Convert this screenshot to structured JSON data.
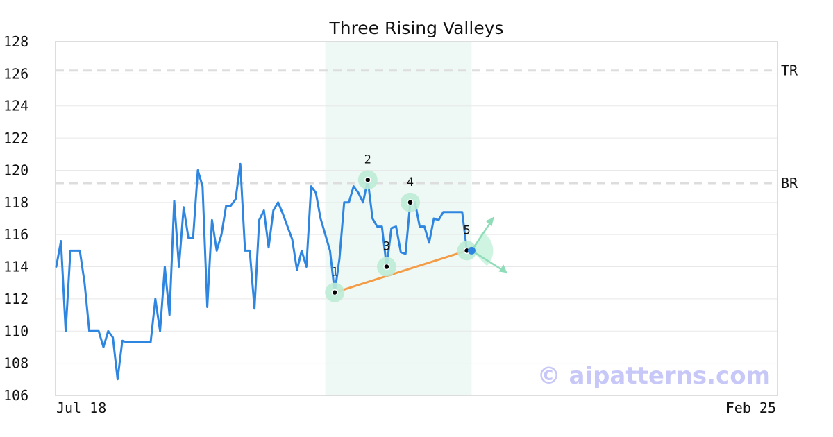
{
  "chart_data": {
    "type": "line",
    "title": "Three Rising Valleys",
    "xlabel": "",
    "ylabel": "",
    "ylim": [
      106,
      128
    ],
    "y_ticks": [
      "106",
      "108",
      "110",
      "112",
      "114",
      "116",
      "118",
      "120",
      "122",
      "124",
      "126",
      "128"
    ],
    "x_tick_labels": [
      "Jul 18",
      "Feb 25"
    ],
    "grid": "horizontal",
    "line_color": "#2e86e0",
    "series": [
      {
        "values": [
          114.0,
          115.6,
          110.0,
          115.0,
          115.0,
          115.0,
          113.0,
          110.0,
          110.0,
          110.0,
          109.0,
          110.0,
          109.6,
          107.0,
          109.4,
          109.3,
          109.3,
          109.3,
          109.3,
          109.3,
          109.3,
          112.0,
          110.0,
          114.0,
          111.0,
          118.1,
          114.0,
          117.7,
          115.8,
          115.8,
          120.0,
          119.0,
          111.5,
          116.9,
          115.0,
          116.0,
          117.8,
          117.8,
          118.2,
          120.4,
          115.0,
          115.0,
          111.4,
          116.9,
          117.5,
          115.2,
          117.5,
          118.0,
          117.3,
          116.5,
          115.7,
          113.8,
          115.0,
          114.0,
          119.0,
          118.6,
          117.0,
          116.0,
          115.0,
          112.4,
          114.5,
          118.0,
          118.0,
          119.0,
          118.6,
          118.0,
          119.4,
          117.0,
          116.5,
          116.5,
          114.0,
          116.4,
          116.5,
          114.9,
          114.8,
          118.0,
          118.0,
          116.5,
          116.5,
          115.5,
          117.0,
          116.9,
          117.4,
          117.4,
          117.4,
          117.4,
          117.4,
          115.0,
          115.0
        ]
      }
    ],
    "levels": [
      {
        "label": "TR",
        "value": 126.2
      },
      {
        "label": "BR",
        "value": 119.2
      }
    ],
    "highlight_range": {
      "start_index": 57,
      "end_index": 88,
      "color": "#eef8f4"
    },
    "pattern_points": [
      {
        "label": "1",
        "index": 59,
        "value": 112.4
      },
      {
        "label": "2",
        "index": 66,
        "value": 119.4
      },
      {
        "label": "3",
        "index": 70,
        "value": 114.0
      },
      {
        "label": "4",
        "index": 75,
        "value": 118.0
      },
      {
        "label": "5",
        "index": 87,
        "value": 115.0
      }
    ],
    "trendline": {
      "from_point": "1",
      "to_point": "5",
      "color": "#f39c45"
    },
    "current_point": {
      "index": 88,
      "value": 115.0,
      "color": "#2e86e0"
    }
  },
  "watermark": "© aipatterns.com"
}
